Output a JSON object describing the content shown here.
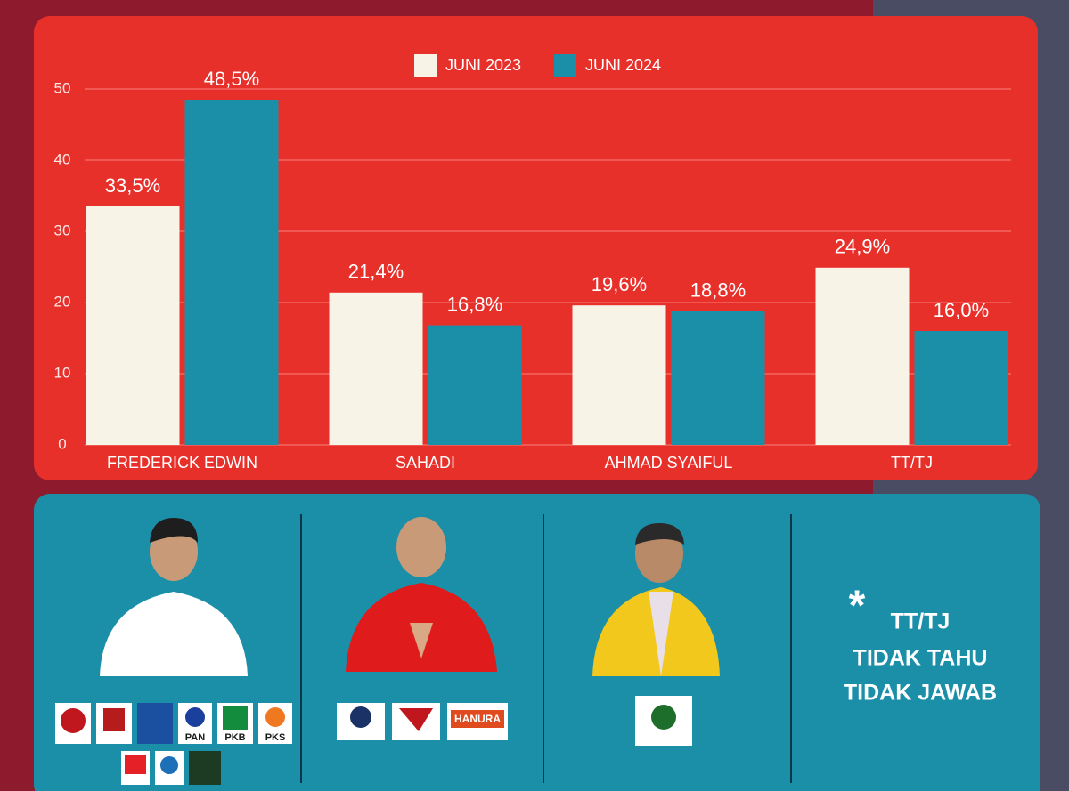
{
  "chart_data": {
    "type": "bar",
    "categories": [
      "FREDERICK EDWIN",
      "SAHADI",
      "AHMAD SYAIFUL",
      "TT/TJ"
    ],
    "series": [
      {
        "name": "JUNI 2023",
        "color": "#f7f3e6",
        "values": [
          33.5,
          21.4,
          19.6,
          24.9
        ],
        "value_labels": [
          "33,5%",
          "21,4%",
          "19,6%",
          "24,9%"
        ]
      },
      {
        "name": "JUNI 2024",
        "color": "#1b8fa8",
        "values": [
          48.5,
          16.8,
          18.8,
          16.0
        ],
        "value_labels": [
          "48,5%",
          "16,8%",
          "18,8%",
          "16,0%"
        ]
      }
    ],
    "ylim": [
      0,
      50
    ],
    "yticks": [
      0,
      10,
      20,
      30,
      40,
      50
    ],
    "grid": true,
    "legend": "top"
  },
  "panels": [
    {
      "logos": [
        "PAN",
        "PKB",
        "PKS"
      ]
    },
    {
      "logos": [
        "HANURA"
      ]
    },
    {
      "logos": []
    }
  ],
  "note": {
    "mark": "*",
    "lines": [
      "TT/TJ",
      "TIDAK TAHU",
      "TIDAK JAWAB"
    ]
  }
}
